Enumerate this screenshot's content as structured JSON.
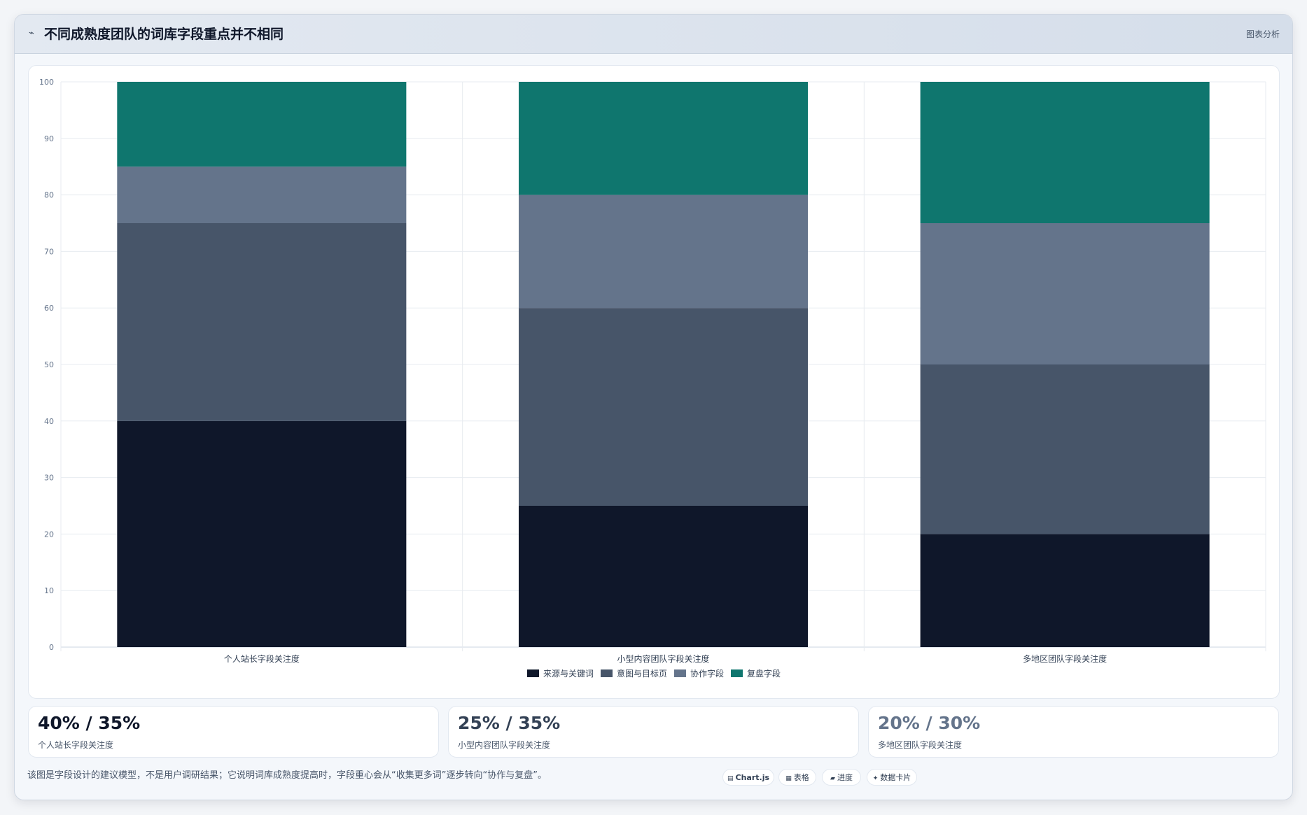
{
  "header": {
    "title": "不同成熟度团队的词库字段重点并不相同",
    "right_label": "图表分析"
  },
  "colors": {
    "series": [
      "#0f172a",
      "#475569",
      "#64748b",
      "#0f766e"
    ]
  },
  "chart_data": {
    "type": "bar",
    "stacked": true,
    "categories": [
      "个人站长字段关注度",
      "小型内容团队字段关注度",
      "多地区团队字段关注度"
    ],
    "series": [
      {
        "name": "来源与关键词",
        "values": [
          40,
          25,
          20
        ]
      },
      {
        "name": "意图与目标页",
        "values": [
          35,
          35,
          30
        ]
      },
      {
        "name": "协作字段",
        "values": [
          10,
          20,
          25
        ]
      },
      {
        "name": "复盘字段",
        "values": [
          15,
          20,
          25
        ]
      }
    ],
    "ylim": [
      0,
      100
    ],
    "yticks": [
      0,
      10,
      20,
      30,
      40,
      50,
      60,
      70,
      80,
      90,
      100
    ],
    "grid": true,
    "legend_position": "bottom"
  },
  "stats": [
    {
      "value": "40% / 35%",
      "label": "个人站长字段关注度",
      "color": "#0f172a"
    },
    {
      "value": "25% / 35%",
      "label": "小型内容团队字段关注度",
      "color": "#334155"
    },
    {
      "value": "20% / 30%",
      "label": "多地区团队字段关注度",
      "color": "#64748b"
    }
  ],
  "footer": {
    "note": "该图是字段设计的建议模型，不是用户调研结果；它说明词库成熟度提高时，字段重心会从“收集更多词”逐步转向“协作与复盘”。",
    "pills": [
      {
        "label": "Chart.js",
        "icon": "chart-icon"
      },
      {
        "label": "表格",
        "icon": "table-icon"
      },
      {
        "label": "进度",
        "icon": "progress-icon"
      },
      {
        "label": "数据卡片",
        "icon": "sparkle-icon"
      }
    ]
  }
}
